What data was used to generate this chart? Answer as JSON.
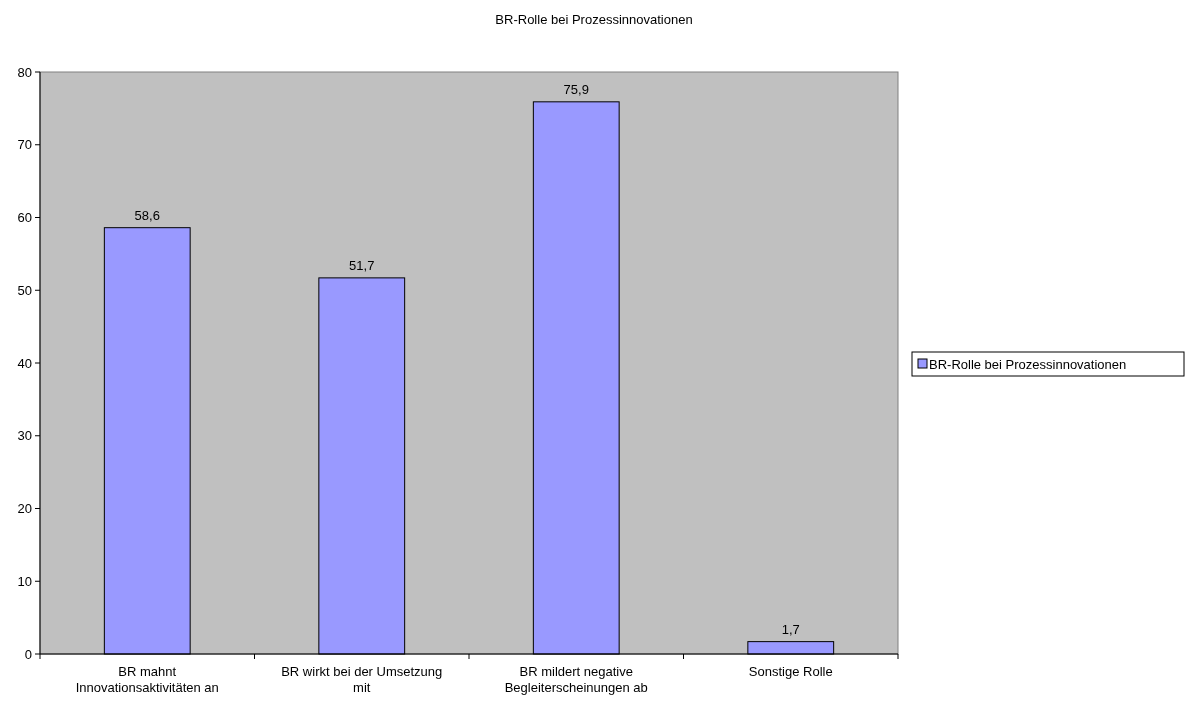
{
  "chart_data": {
    "type": "bar",
    "title": "BR-Rolle bei Prozessinnovationen",
    "categories": [
      "BR mahnt Innovationsaktivitäten an",
      "BR wirkt bei der Umsetzung mit",
      "BR mildert negative Begleiterscheinungen ab",
      "Sonstige Rolle"
    ],
    "series": [
      {
        "name": "BR-Rolle bei Prozessinnovationen",
        "color": "#9999ff",
        "values": [
          58.6,
          51.7,
          75.9,
          1.7
        ],
        "value_labels": [
          "58,6",
          "51,7",
          "75,9",
          "1,7"
        ]
      }
    ],
    "ylim": [
      0,
      80
    ],
    "yticks": [
      0,
      10,
      20,
      30,
      40,
      50,
      60,
      70,
      80
    ],
    "legend": "right"
  }
}
